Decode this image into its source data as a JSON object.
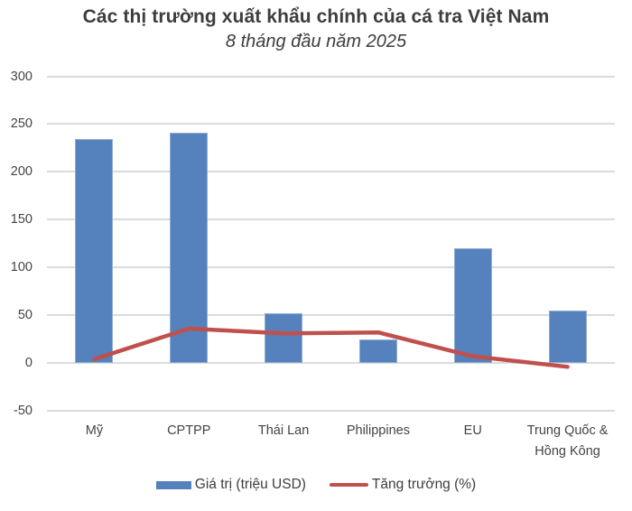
{
  "chart_data": {
    "type": "combo-bar-line",
    "title": "Các thị trường xuất khẩu chính của cá tra Việt Nam",
    "subtitle": "8 tháng đầu năm 2025",
    "categories": [
      "Mỹ",
      "CPTPP",
      "Thái Lan",
      "Philippines",
      "EU",
      "Trung Quốc &\nHồng Kông"
    ],
    "series": [
      {
        "name": "Giá trị (triệu USD)",
        "type": "bar",
        "color": "#5581BC",
        "values": [
          234,
          241,
          52,
          25,
          120,
          55
        ]
      },
      {
        "name": "Tăng trưởng (%)",
        "type": "line",
        "color": "#C0504D",
        "values": [
          4,
          36,
          31,
          32,
          7,
          -4
        ]
      }
    ],
    "y_axis": {
      "min": -50,
      "max": 300,
      "step": 50,
      "ticks": [
        300,
        250,
        200,
        150,
        100,
        50,
        0,
        -50
      ]
    },
    "xlabel": "",
    "ylabel": "",
    "grid": "horizontal gridlines, light gray",
    "legend_position": "bottom center",
    "colors": {
      "gridline": "#DBDBDB",
      "text": "#404040",
      "background": "#FFFFFF"
    }
  }
}
